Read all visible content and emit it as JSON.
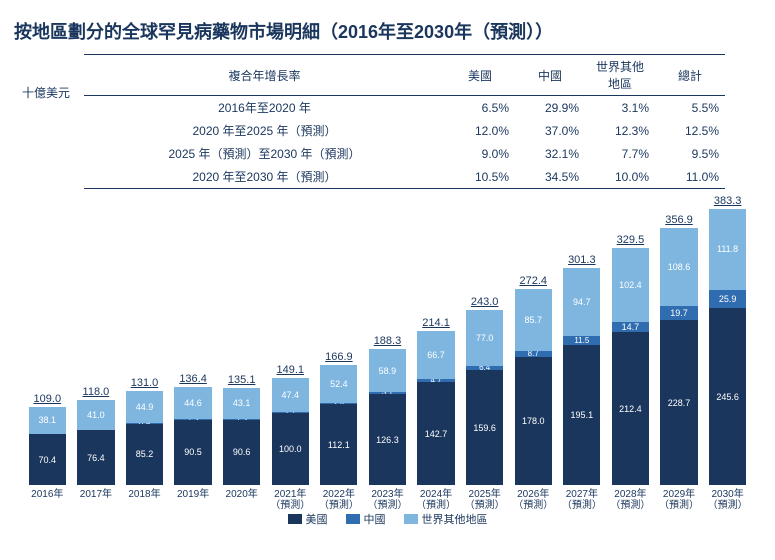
{
  "title": "按地區劃分的全球罕見病藥物市場明細（2016年至2030年（預測））",
  "unit_label": "十億美元",
  "colors": {
    "us": "#1a365d",
    "cn": "#2f6db0",
    "row": "#7eb6e0",
    "text": "#1a365d",
    "bg": "#ffffff"
  },
  "title_fontsize": 18,
  "table": {
    "header_period": "複合年增長率",
    "col_us": "美國",
    "col_cn": "中國",
    "col_row": "世界其他地區",
    "col_total": "總計",
    "rows": [
      {
        "period": "2016年至2020 年",
        "us": "6.5%",
        "cn": "29.9%",
        "row": "3.1%",
        "total": "5.5%"
      },
      {
        "period": "2020 年至2025 年（預測）",
        "us": "12.0%",
        "cn": "37.0%",
        "row": "12.3%",
        "total": "12.5%"
      },
      {
        "period": "2025 年（預測）至2030 年（預測）",
        "us": "9.0%",
        "cn": "32.1%",
        "row": "7.7%",
        "total": "9.5%"
      },
      {
        "period": "2020 年至2030 年（預測）",
        "us": "10.5%",
        "cn": "34.5%",
        "row": "10.0%",
        "total": "11.0%"
      }
    ]
  },
  "chart": {
    "type": "stacked-bar",
    "y_max": 400,
    "series": [
      {
        "key": "row",
        "label": "世界其他地區",
        "color": "#7eb6e0"
      },
      {
        "key": "cn",
        "label": "中國",
        "color": "#2f6db0"
      },
      {
        "key": "us",
        "label": "美國",
        "color": "#1a365d"
      }
    ],
    "legend_order": [
      "us",
      "cn",
      "row"
    ],
    "legend_labels": {
      "us": "美國",
      "cn": "中國",
      "row": "世界其他地區"
    },
    "bars": [
      {
        "x": "2016年",
        "total": 109.0,
        "us": 70.4,
        "cn": 0.5,
        "row": 38.1
      },
      {
        "x": "2017年",
        "total": 118.0,
        "us": 76.4,
        "cn": 0.7,
        "row": 41.0
      },
      {
        "x": "2018年",
        "total": 131.0,
        "us": 85.2,
        "cn": 0.9,
        "row": 44.9
      },
      {
        "x": "2019年",
        "total": 136.4,
        "us": 90.5,
        "cn": 1.3,
        "row": 44.6
      },
      {
        "x": "2020年",
        "total": 135.1,
        "us": 90.6,
        "cn": 1.3,
        "row": 43.1
      },
      {
        "x": "2021年\n（預測）",
        "total": 149.1,
        "us": 100.0,
        "cn": 1.7,
        "row": 47.4
      },
      {
        "x": "2022年\n（預測）",
        "total": 166.9,
        "us": 112.1,
        "cn": 2.4,
        "row": 52.4
      },
      {
        "x": "2023年\n（預測）",
        "total": 188.3,
        "us": 126.3,
        "cn": 3.1,
        "row": 58.9
      },
      {
        "x": "2024年\n（預測）",
        "total": 214.1,
        "us": 142.7,
        "cn": 4.7,
        "row": 66.7
      },
      {
        "x": "2025年\n（預測）",
        "total": 243.0,
        "us": 159.6,
        "cn": 6.4,
        "row": 77.0
      },
      {
        "x": "2026年\n（預測）",
        "total": 272.4,
        "us": 178.0,
        "cn": 8.7,
        "row": 85.7
      },
      {
        "x": "2027年\n（預測）",
        "total": 301.3,
        "us": 195.1,
        "cn": 11.5,
        "row": 94.7
      },
      {
        "x": "2028年\n（預測）",
        "total": 329.5,
        "us": 212.4,
        "cn": 14.7,
        "row": 102.4
      },
      {
        "x": "2029年\n（預測）",
        "total": 356.9,
        "us": 228.7,
        "cn": 19.7,
        "row": 108.6
      },
      {
        "x": "2030年\n（預測）",
        "total": 383.3,
        "us": 245.6,
        "cn": 25.9,
        "row": 111.8
      }
    ]
  }
}
